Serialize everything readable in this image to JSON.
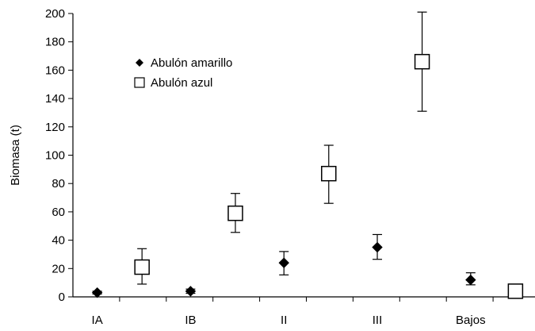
{
  "chart_data": {
    "type": "scatter",
    "categories": [
      "IA",
      "IB",
      "II",
      "III",
      "Bajos"
    ],
    "ylabel": "Biomasa (t)",
    "ylim": [
      0,
      200
    ],
    "yticks": [
      0,
      20,
      40,
      60,
      80,
      100,
      120,
      140,
      160,
      180,
      200
    ],
    "grid": false,
    "legend_position": "upper-left",
    "series": [
      {
        "name": "Abulón amarillo",
        "marker": "filled-diamond",
        "color": "#000000",
        "x": [
          "IA",
          "IB",
          "II",
          "III",
          "Bajos"
        ],
        "values": [
          3,
          4,
          24,
          35,
          12
        ],
        "error_low": [
          2,
          2.5,
          15.5,
          26.5,
          8.5
        ],
        "error_high": [
          4,
          5.5,
          32,
          44,
          17
        ]
      },
      {
        "name": "Abulón azul",
        "marker": "open-square",
        "color": "#000000",
        "x": [
          "IA",
          "IB",
          "II",
          "III",
          "Bajos"
        ],
        "values": [
          21,
          59,
          87,
          166,
          4
        ],
        "error_low": [
          9,
          45.5,
          66,
          131,
          1
        ],
        "error_high": [
          34,
          73,
          107,
          201,
          7
        ]
      }
    ]
  }
}
